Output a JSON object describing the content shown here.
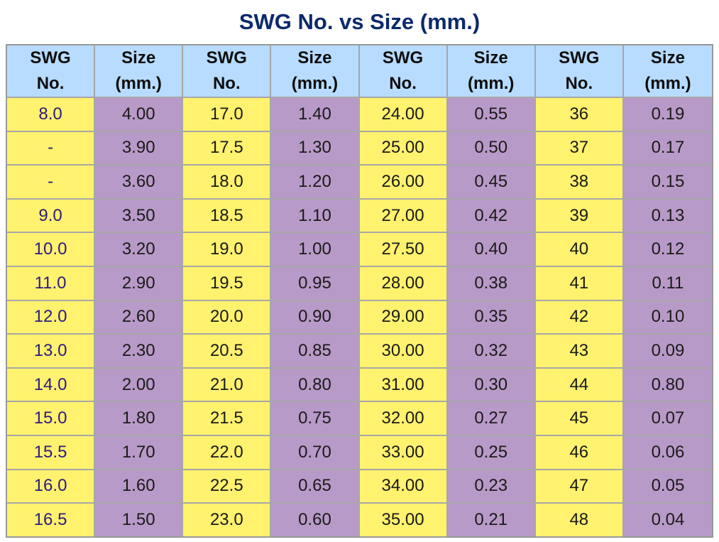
{
  "title": "SWG No. vs Size (mm.)",
  "header": {
    "c0": [
      "SWG",
      "No."
    ],
    "c1": [
      "Size",
      "(mm.)"
    ],
    "c2": [
      "SWG",
      "No."
    ],
    "c3": [
      "Size",
      "(mm.)"
    ],
    "c4": [
      "SWG",
      "No."
    ],
    "c5": [
      "Size",
      "(mm.)"
    ],
    "c6": [
      "SWG",
      "No."
    ],
    "c7": [
      "Size",
      "(mm.)"
    ]
  },
  "rows": [
    [
      "8.0",
      "4.00",
      "17.0",
      "1.40",
      "24.00",
      "0.55",
      "36",
      "0.19"
    ],
    [
      "-",
      "3.90",
      "17.5",
      "1.30",
      "25.00",
      "0.50",
      "37",
      "0.17"
    ],
    [
      "-",
      "3.60",
      "18.0",
      "1.20",
      "26.00",
      "0.45",
      "38",
      "0.15"
    ],
    [
      "9.0",
      "3.50",
      "18.5",
      "1.10",
      "27.00",
      "0.42",
      "39",
      "0.13"
    ],
    [
      "10.0",
      "3.20",
      "19.0",
      "1.00",
      "27.50",
      "0.40",
      "40",
      "0.12"
    ],
    [
      "11.0",
      "2.90",
      "19.5",
      "0.95",
      "28.00",
      "0.38",
      "41",
      "0.11"
    ],
    [
      "12.0",
      "2.60",
      "20.0",
      "0.90",
      "29.00",
      "0.35",
      "42",
      "0.10"
    ],
    [
      "13.0",
      "2.30",
      "20.5",
      "0.85",
      "30.00",
      "0.32",
      "43",
      "0.09"
    ],
    [
      "14.0",
      "2.00",
      "21.0",
      "0.80",
      "31.00",
      "0.30",
      "44",
      "0.80"
    ],
    [
      "15.0",
      "1.80",
      "21.5",
      "0.75",
      "32.00",
      "0.27",
      "45",
      "0.07"
    ],
    [
      "15.5",
      "1.70",
      "22.0",
      "0.70",
      "33.00",
      "0.25",
      "46",
      "0.06"
    ],
    [
      "16.0",
      "1.60",
      "22.5",
      "0.65",
      "34.00",
      "0.23",
      "47",
      "0.05"
    ],
    [
      "16.5",
      "1.50",
      "23.0",
      "0.60",
      "35.00",
      "0.21",
      "48",
      "0.04"
    ]
  ],
  "colors": {
    "title": "#0b2a6b",
    "header_bg": "#b7dcff",
    "swg_cell_bg": "#fff26e",
    "size_cell_bg": "#b89ac8",
    "first_col_text": "#2e1a80"
  }
}
